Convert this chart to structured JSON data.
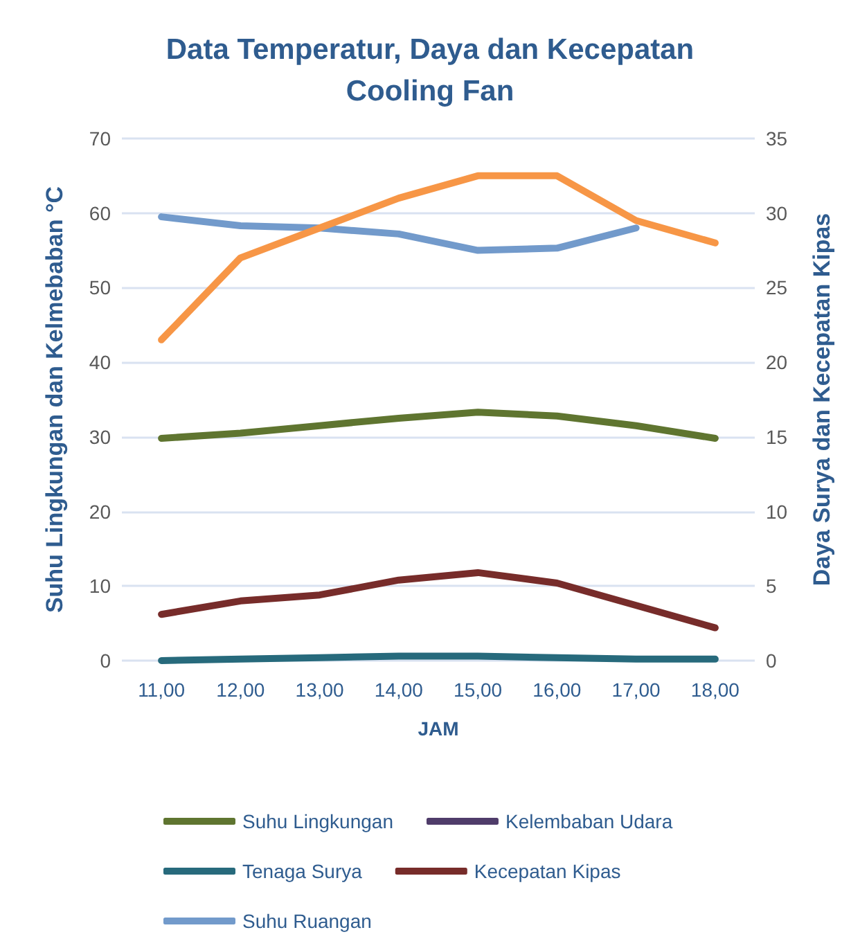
{
  "chart_data": {
    "type": "line",
    "title": "Data Temperatur, Daya dan Kecepatan\nCooling Fan",
    "xlabel": "JAM",
    "ylabel": "Suhu Lingkungan dan Kelmebaban °C",
    "y2label": "Daya Surya dan Kecepatan Kipas",
    "categories": [
      "11,00",
      "12,00",
      "13,00",
      "14,00",
      "15,00",
      "16,00",
      "17,00",
      "18,00"
    ],
    "series": [
      {
        "name": "Suhu Lingkungan",
        "color": "#5f7530",
        "values": [
          29.8,
          30.5,
          31.5,
          32.5,
          33.3,
          32.8,
          31.5,
          29.8
        ]
      },
      {
        "name": "Kelembaban Udara",
        "color": "#4f3c6a",
        "values": [
          null,
          null,
          null,
          null,
          null,
          null,
          null,
          null
        ]
      },
      {
        "name": "Tenaga Surya",
        "color": "#276a7c",
        "axis": "y2",
        "values": [
          0,
          0.1,
          0.2,
          0.3,
          0.3,
          0.2,
          0.1,
          0.1
        ]
      },
      {
        "name": "Kecepatan Kipas",
        "color": "#772c2a",
        "axis": "y2",
        "values": [
          3.1,
          4,
          4.4,
          5.4,
          5.9,
          5.2,
          3.7,
          2.2
        ]
      },
      {
        "name": "Suhu Ruangan",
        "color": "#729acb",
        "values": [
          59.5,
          58.3,
          58,
          57.2,
          55,
          55.3,
          58,
          null
        ]
      },
      {
        "color": "#f79646",
        "values": [
          43,
          54,
          58,
          62,
          65,
          65,
          59,
          56
        ]
      }
    ],
    "ylim": [
      0,
      70
    ],
    "yticks": [
      0,
      10,
      20,
      30,
      40,
      50,
      60,
      70
    ],
    "y2lim": [
      0,
      35
    ],
    "y2ticks": [
      0,
      5,
      10,
      15,
      20,
      25,
      30,
      35
    ],
    "grid": "y",
    "legend": "bottom",
    "marker": "none",
    "line_style": "solid"
  }
}
